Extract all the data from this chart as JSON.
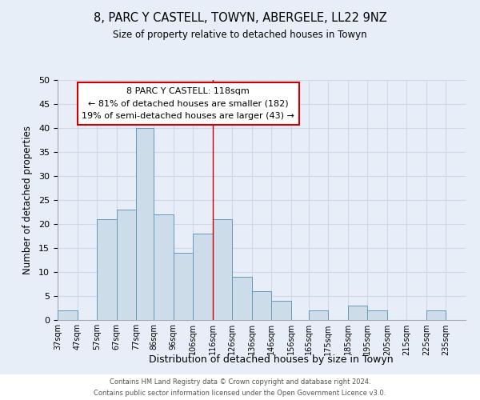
{
  "title": "8, PARC Y CASTELL, TOWYN, ABERGELE, LL22 9NZ",
  "subtitle": "Size of property relative to detached houses in Towyn",
  "xlabel": "Distribution of detached houses by size in Towyn",
  "ylabel": "Number of detached properties",
  "bar_color": "#ccdce8",
  "bar_edgecolor": "#6699bb",
  "annotation_title": "8 PARC Y CASTELL: 118sqm",
  "annotation_line1": "← 81% of detached houses are smaller (182)",
  "annotation_line2": "19% of semi-detached houses are larger (43) →",
  "property_line_x": 116,
  "footer_line1": "Contains HM Land Registry data © Crown copyright and database right 2024.",
  "footer_line2": "Contains public sector information licensed under the Open Government Licence v3.0.",
  "categories": [
    "37sqm",
    "47sqm",
    "57sqm",
    "67sqm",
    "77sqm",
    "86sqm",
    "96sqm",
    "106sqm",
    "116sqm",
    "126sqm",
    "136sqm",
    "146sqm",
    "156sqm",
    "165sqm",
    "175sqm",
    "185sqm",
    "195sqm",
    "205sqm",
    "215sqm",
    "225sqm",
    "235sqm"
  ],
  "bin_edges": [
    37,
    47,
    57,
    67,
    77,
    86,
    96,
    106,
    116,
    126,
    136,
    146,
    156,
    165,
    175,
    185,
    195,
    205,
    215,
    225,
    235,
    245
  ],
  "values": [
    2,
    0,
    21,
    23,
    40,
    22,
    14,
    18,
    21,
    9,
    6,
    4,
    0,
    2,
    0,
    3,
    2,
    0,
    0,
    2,
    0
  ],
  "ylim": [
    0,
    50
  ],
  "yticks": [
    0,
    5,
    10,
    15,
    20,
    25,
    30,
    35,
    40,
    45,
    50
  ],
  "annotation_box_color": "#ffffff",
  "annotation_box_edgecolor": "#cc0000",
  "property_line_color": "#cc0000",
  "grid_color": "#d0d8e8",
  "background_color": "#e8eef8",
  "footer_bg": "#ffffff"
}
